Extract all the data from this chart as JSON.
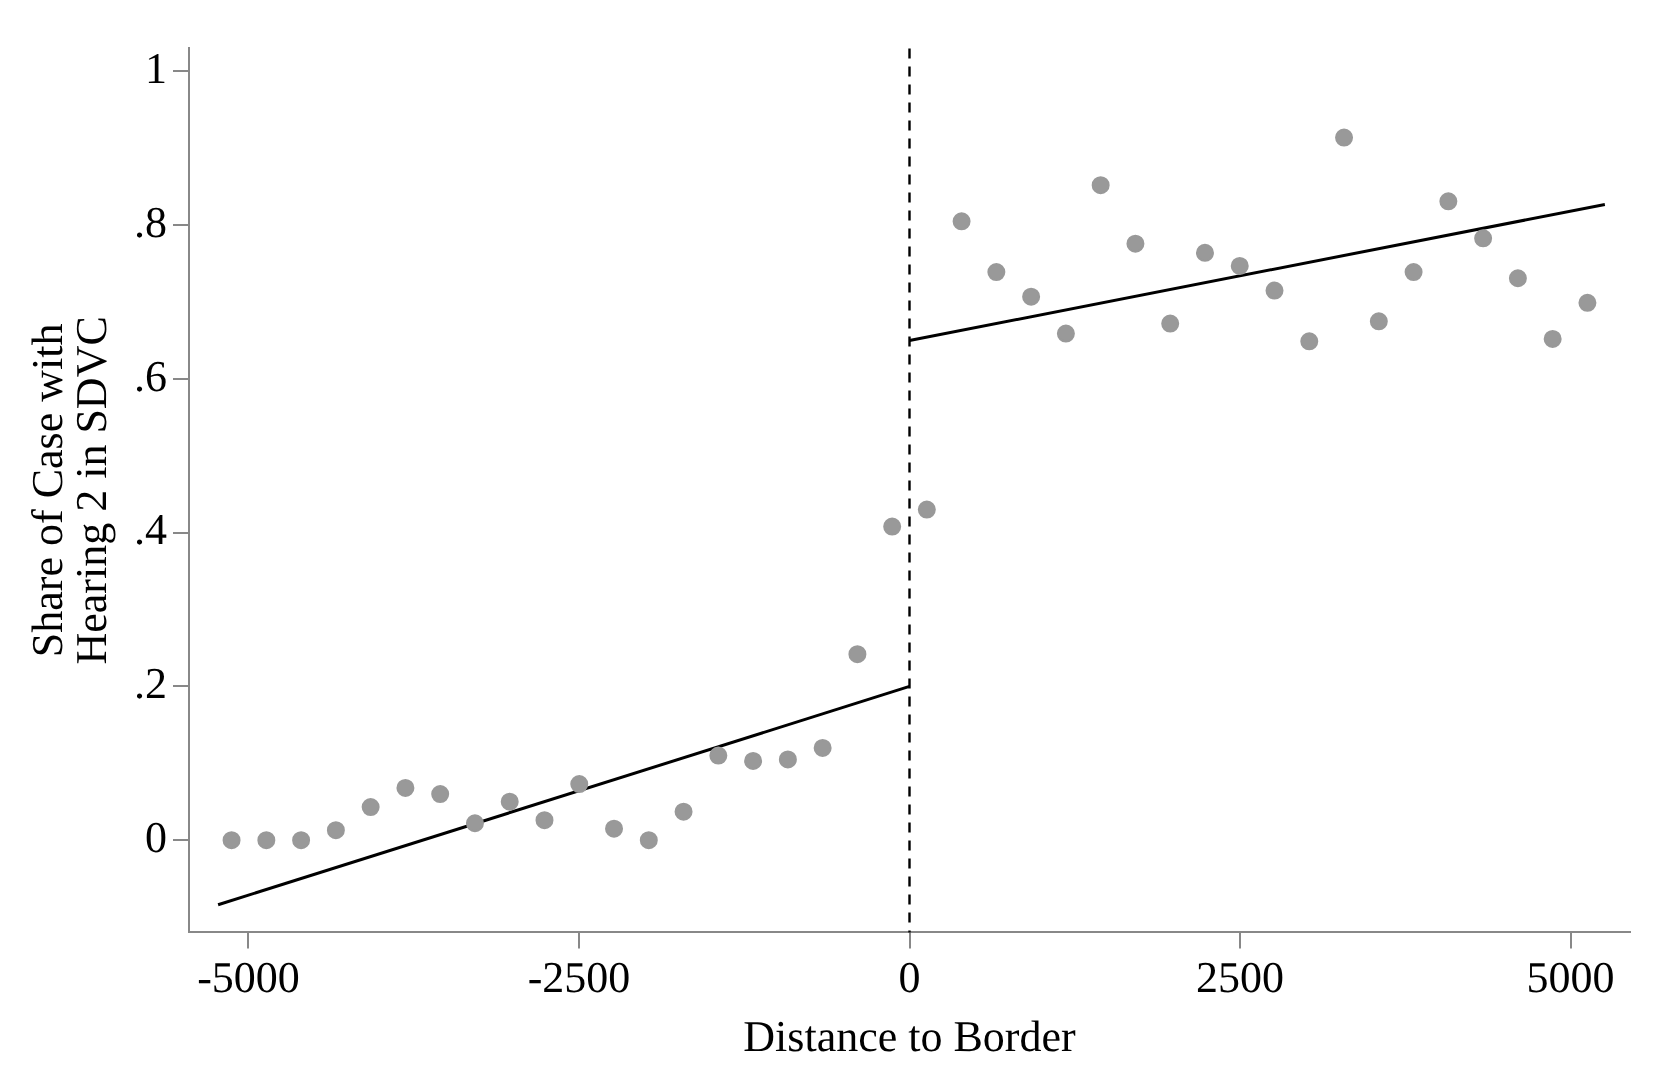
{
  "chart_data": {
    "type": "scatter",
    "xlabel": "Distance to Border",
    "ylabel": "Share of Case with\nHearing 2 in SDVC",
    "xlim": [
      -5450,
      5450
    ],
    "ylim": [
      -0.12,
      1.03
    ],
    "xticks": [
      {
        "value": -5000,
        "label": "-5000"
      },
      {
        "value": -2500,
        "label": "-2500"
      },
      0,
      2500,
      5000
    ],
    "yticks": [
      0,
      {
        "value": 0.2,
        "label": ".2"
      },
      {
        "value": 0.4,
        "label": ".4"
      },
      {
        "value": 0.6,
        "label": ".6"
      },
      {
        "value": 0.8,
        "label": ".8"
      },
      1
    ],
    "grid": false,
    "legend": false,
    "ref_lines": [
      {
        "axis": "x",
        "value": 0,
        "color": "#000000",
        "line_style": "dashed"
      }
    ],
    "series": [
      {
        "type": "scatter",
        "color": "#999999",
        "marker": "circle",
        "x": [
          -5128,
          -4865,
          -4602,
          -4339,
          -4076,
          -3813,
          -3550,
          -3287,
          -3024,
          -2761,
          -2498,
          -2235,
          -1972,
          -1709,
          -1446,
          -1183,
          -920,
          -657,
          -394,
          -131,
          131,
          394,
          657,
          920,
          1183,
          1446,
          1709,
          1972,
          2235,
          2498,
          2761,
          3024,
          3287,
          3550,
          3813,
          4076,
          4339,
          4602,
          4865,
          5128
        ],
        "values": [
          0,
          0,
          0,
          0.013,
          0.043,
          0.068,
          0.06,
          0.022,
          0.05,
          0.026,
          0.073,
          0.015,
          0,
          0.037,
          0.11,
          0.103,
          0.105,
          0.12,
          0.242,
          0.408,
          0.43,
          0.805,
          0.739,
          0.707,
          0.659,
          0.852,
          0.776,
          0.672,
          0.764,
          0.747,
          0.715,
          0.649,
          0.914,
          0.675,
          0.739,
          0.831,
          0.783,
          0.731,
          0.652,
          0.699
        ]
      },
      {
        "type": "line",
        "color": "#000000",
        "marker": "none",
        "line_style": "solid",
        "x": [
          -5230,
          0
        ],
        "values": [
          -0.084,
          0.2
        ]
      },
      {
        "type": "line",
        "color": "#000000",
        "marker": "none",
        "line_style": "solid",
        "x": [
          0,
          5260
        ],
        "values": [
          0.65,
          0.827
        ]
      }
    ]
  }
}
